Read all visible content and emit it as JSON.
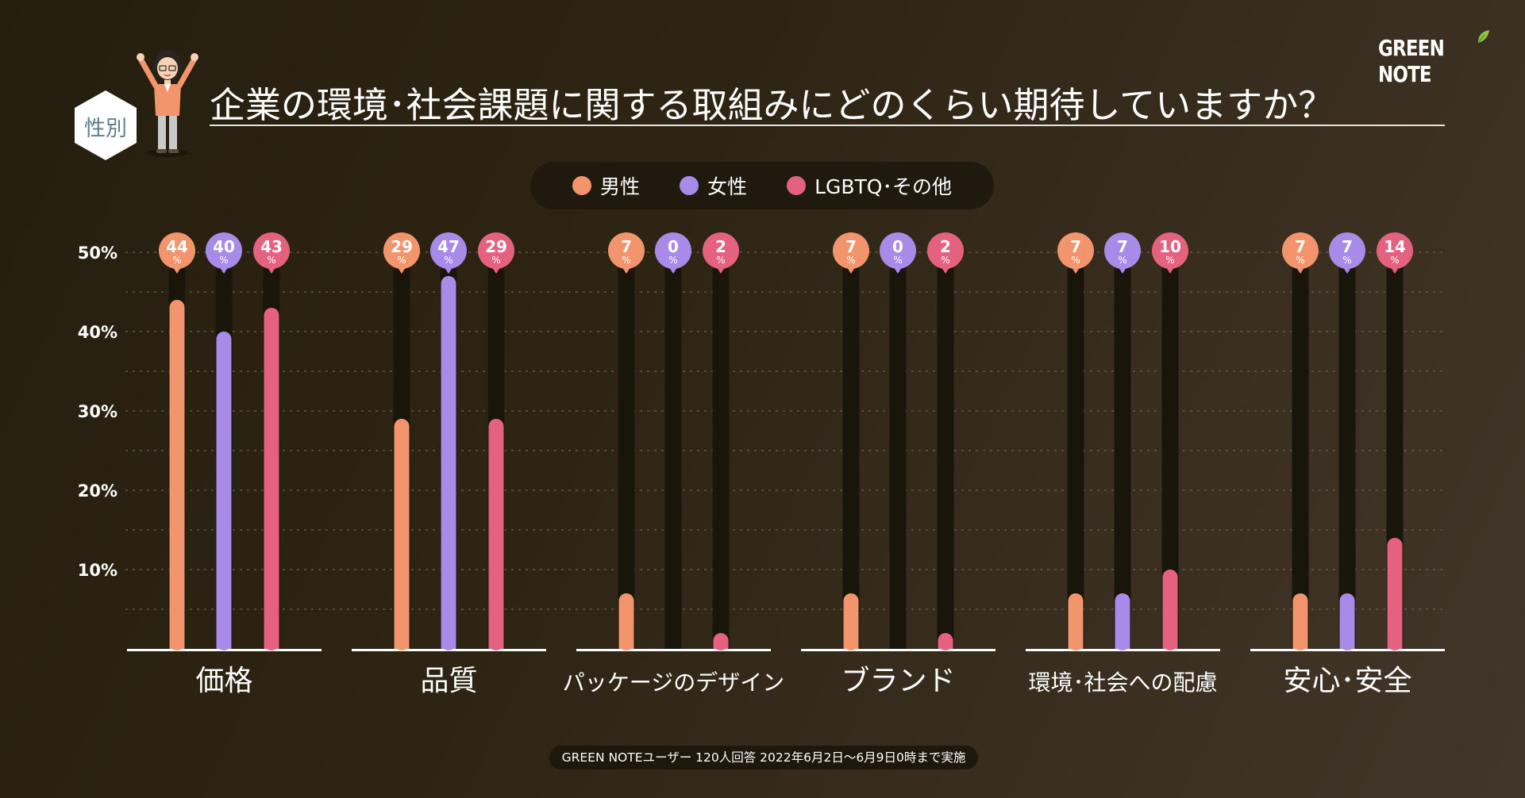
{
  "brand": {
    "name": "GREEN NOTE"
  },
  "header": {
    "badge": "性別",
    "title": "企業の環境･社会課題に関する取組みにどのくらい期待していますか？"
  },
  "legend": [
    {
      "label": "男性",
      "color": "#f3956c"
    },
    {
      "label": "女性",
      "color": "#a88ae8"
    },
    {
      "label": "LGBTQ･その他",
      "color": "#e4627f"
    }
  ],
  "chart_data": {
    "type": "bar",
    "title": "企業の環境･社会課題に関する取組みにどのくらい期待していますか？",
    "ylim": [
      0,
      50
    ],
    "yticks": [
      "10%",
      "20%",
      "30%",
      "40%",
      "50%"
    ],
    "categories": [
      "価格",
      "品質",
      "パッケージのデザイン",
      "ブランド",
      "環境･社会への配慮",
      "安心･安全"
    ],
    "series": [
      {
        "name": "男性",
        "color": "#f3956c",
        "values": [
          44,
          29,
          7,
          7,
          7,
          7
        ]
      },
      {
        "name": "女性",
        "color": "#a88ae8",
        "values": [
          40,
          47,
          0,
          0,
          7,
          7
        ]
      },
      {
        "name": "LGBTQ･その他",
        "color": "#e4627f",
        "values": [
          43,
          29,
          2,
          2,
          10,
          14
        ]
      }
    ],
    "value_unit": "%"
  },
  "footer": {
    "note": "GREEN NOTEユーザー 120人回答 2022年6月2日〜6月9日0時まで実施"
  }
}
